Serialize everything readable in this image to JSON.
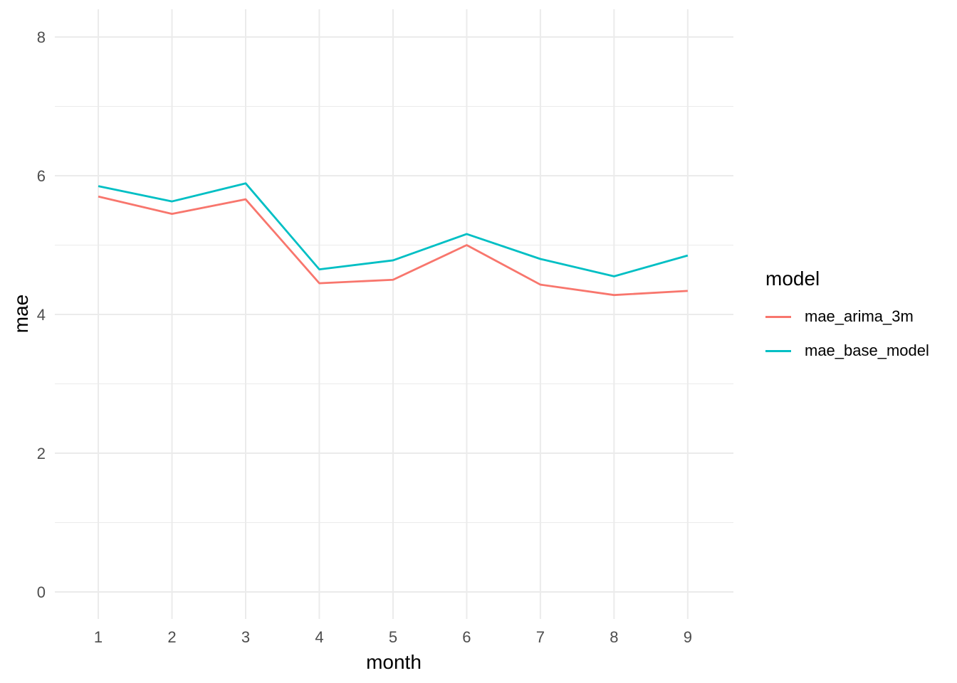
{
  "chart_data": {
    "type": "line",
    "title": "",
    "xlabel": "month",
    "ylabel": "mae",
    "x": [
      1,
      2,
      3,
      4,
      5,
      6,
      7,
      8,
      9
    ],
    "xticks": [
      1,
      2,
      3,
      4,
      5,
      6,
      7,
      8,
      9
    ],
    "yticks": [
      0,
      2,
      4,
      6,
      8
    ],
    "y_minor_gridlines": [
      1,
      3,
      5,
      7
    ],
    "xlim": [
      0.41,
      9.62
    ],
    "ylim": [
      -0.39,
      8.4
    ],
    "grid": true,
    "legend_position": "right",
    "legend_title": "model",
    "series": [
      {
        "name": "mae_arima_3m",
        "color": "#F8766D",
        "values": [
          5.7,
          5.45,
          5.66,
          4.45,
          4.5,
          5.0,
          4.43,
          4.28,
          4.34
        ]
      },
      {
        "name": "mae_base_model",
        "color": "#00BFC4",
        "values": [
          5.85,
          5.63,
          5.89,
          4.65,
          4.78,
          5.16,
          4.8,
          4.55,
          4.85
        ]
      }
    ],
    "colors": {
      "gridline": "#EBEBEB",
      "tick_label": "#4D4D4D",
      "axis_title": "#000000",
      "background": "#FFFFFF"
    }
  }
}
